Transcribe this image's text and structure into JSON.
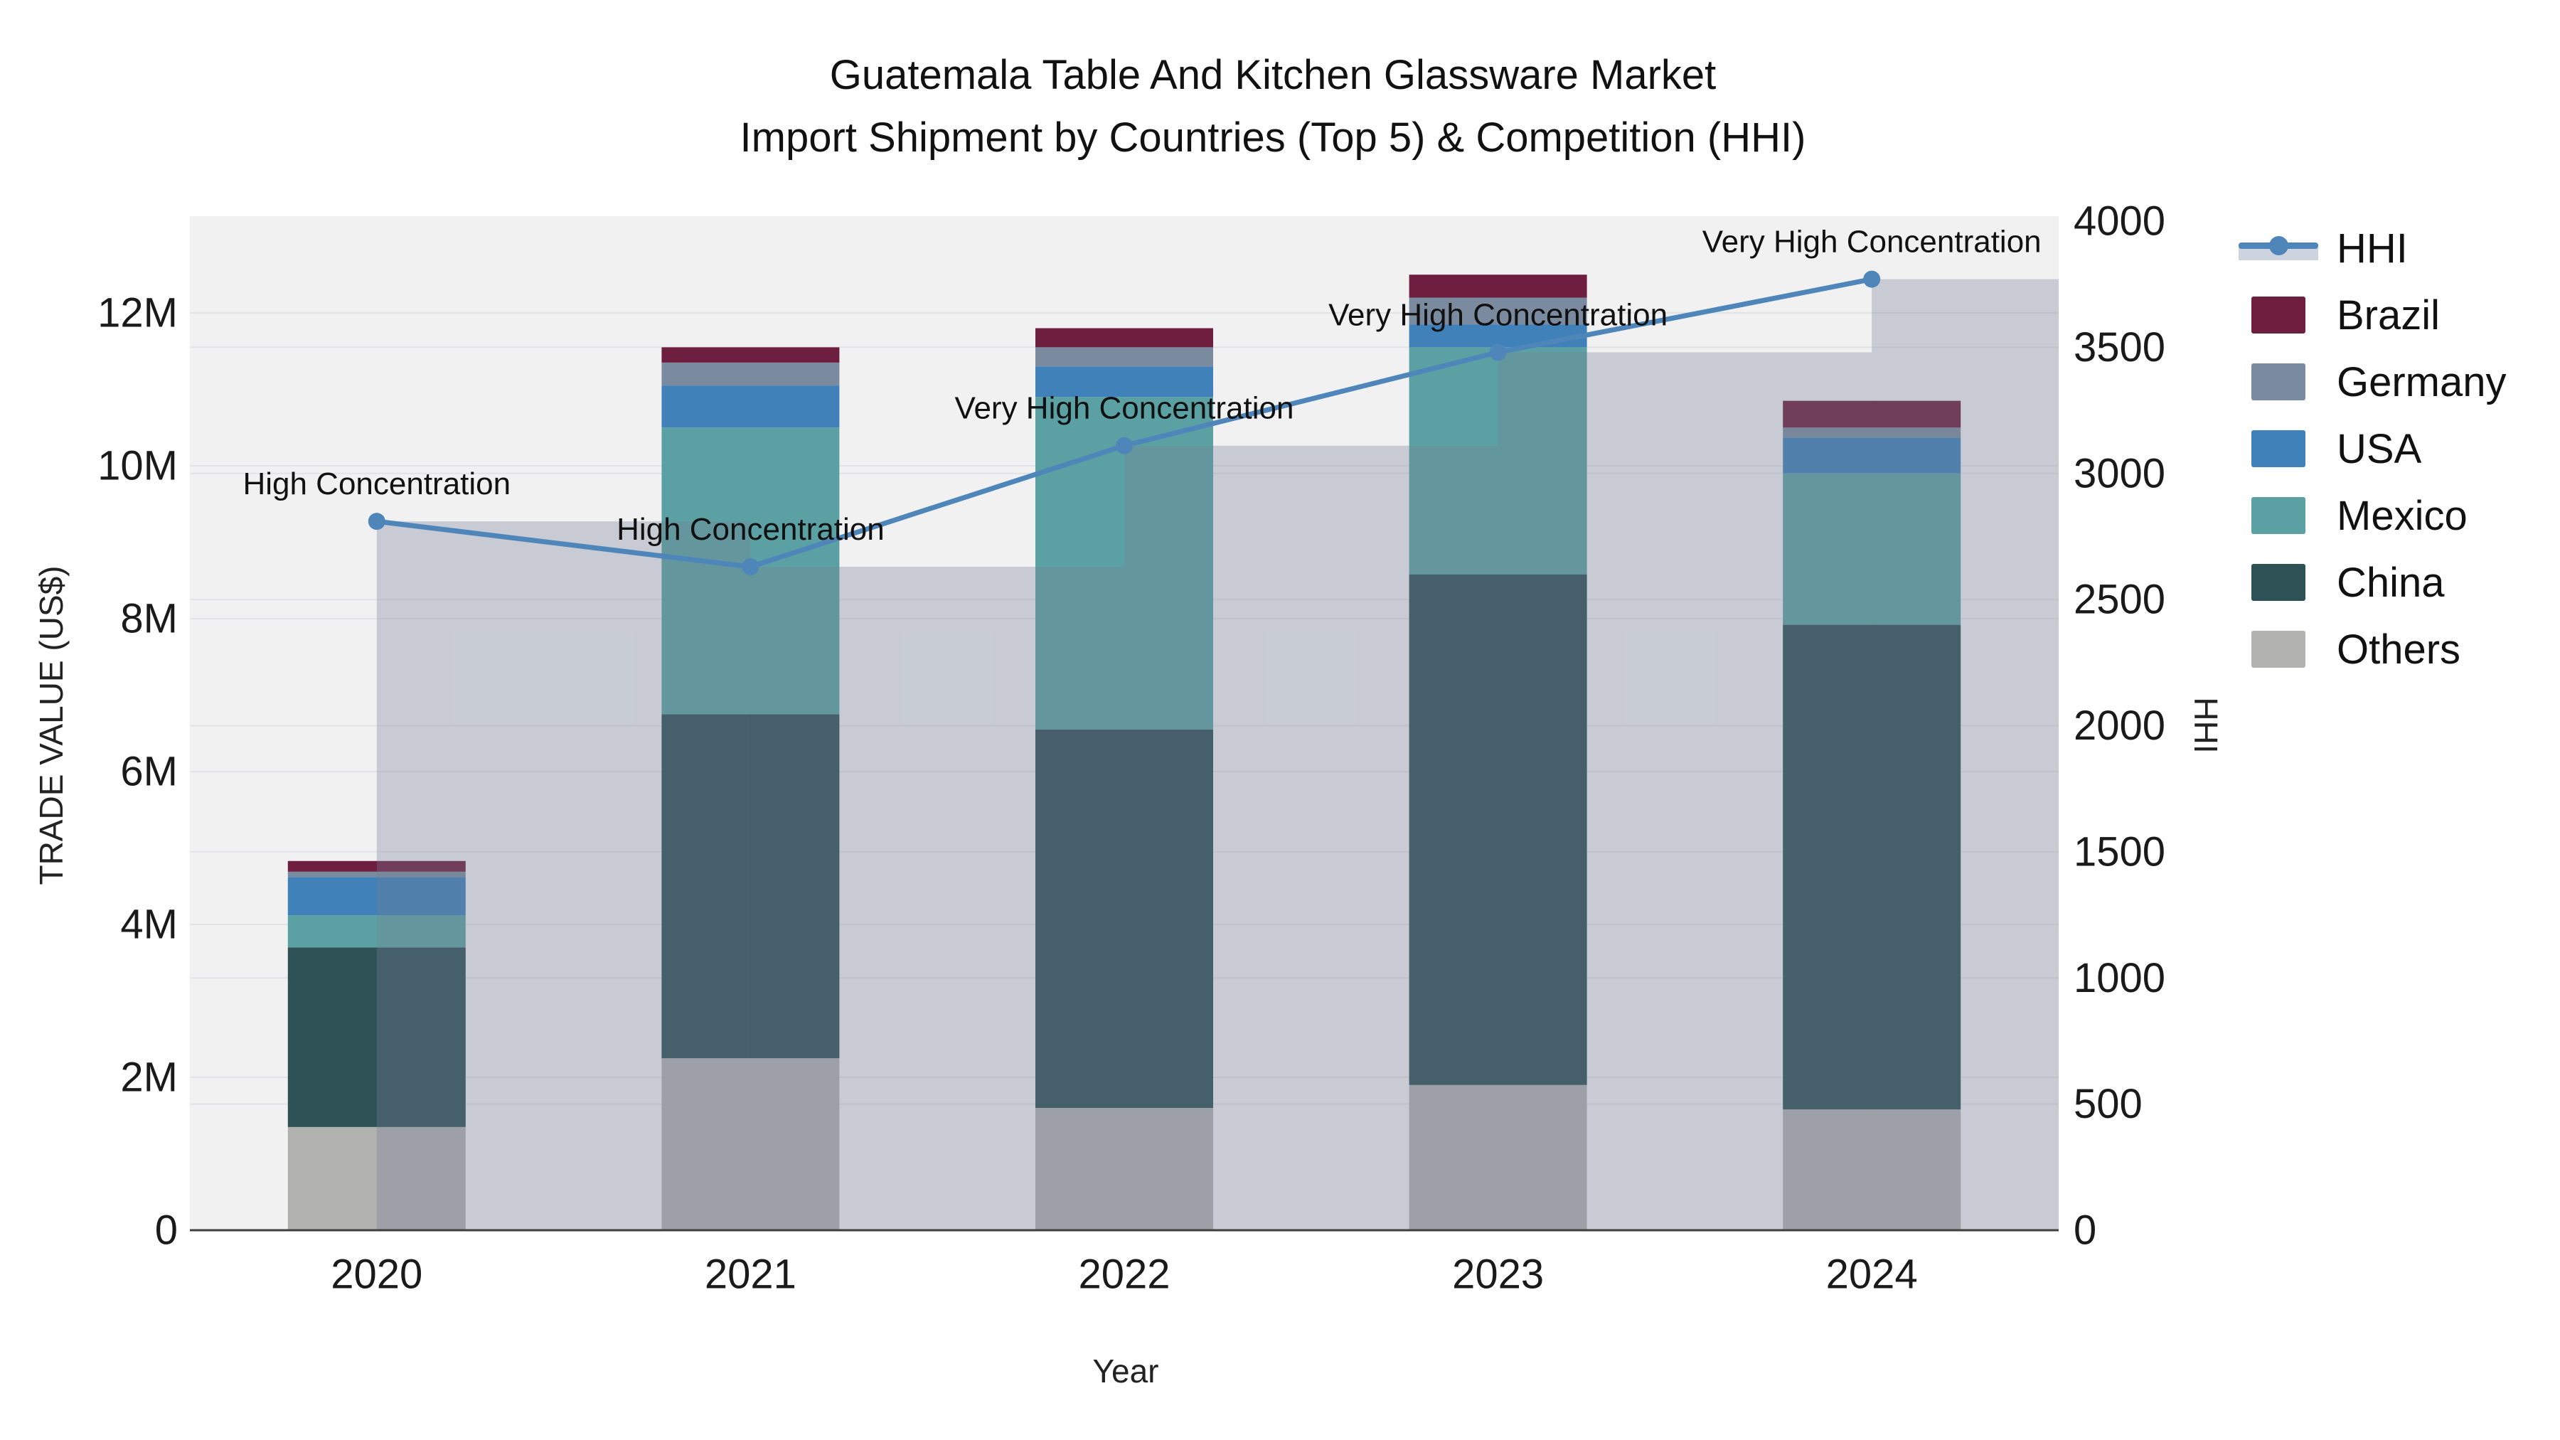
{
  "title": {
    "line1": "Guatemala Table And Kitchen Glassware Market",
    "line2": "Import Shipment by Countries (Top 5) & Competition (HHI)"
  },
  "axes": {
    "left_title": "TRADE VALUE (US$)",
    "right_title": "HHI",
    "x_title": "Year",
    "left_ticks": [
      {
        "label": "0",
        "value": 0
      },
      {
        "label": "2M",
        "value": 2
      },
      {
        "label": "4M",
        "value": 4
      },
      {
        "label": "6M",
        "value": 6
      },
      {
        "label": "8M",
        "value": 8
      },
      {
        "label": "10M",
        "value": 10
      },
      {
        "label": "12M",
        "value": 12
      }
    ],
    "right_ticks": [
      {
        "label": "0",
        "value": 0
      },
      {
        "label": "500",
        "value": 500
      },
      {
        "label": "1000",
        "value": 1000
      },
      {
        "label": "1500",
        "value": 1500
      },
      {
        "label": "2000",
        "value": 2000
      },
      {
        "label": "2500",
        "value": 2500
      },
      {
        "label": "3000",
        "value": 3000
      },
      {
        "label": "3500",
        "value": 3500
      },
      {
        "label": "4000",
        "value": 4000
      }
    ]
  },
  "legend": {
    "items": [
      {
        "label": "HHI",
        "type": "line",
        "color": "#4e86ba",
        "band_color": "#cdd4e0"
      },
      {
        "label": "Brazil",
        "type": "swatch",
        "color": "#6e1e3e"
      },
      {
        "label": "Germany",
        "type": "swatch",
        "color": "#7b8b9f"
      },
      {
        "label": "USA",
        "type": "swatch",
        "color": "#4081ba"
      },
      {
        "label": "Mexico",
        "type": "swatch",
        "color": "#5ba1a3"
      },
      {
        "label": "China",
        "type": "swatch",
        "color": "#2e5156"
      },
      {
        "label": "Others",
        "type": "swatch",
        "color": "#b1b1b0"
      }
    ]
  },
  "chart_data": {
    "type": "combo-stacked-bar-line",
    "categories": [
      "2020",
      "2021",
      "2022",
      "2023",
      "2024"
    ],
    "value_unit": "US$ millions",
    "stack_order_bottom_to_top": [
      "Others",
      "China",
      "Mexico",
      "USA",
      "Germany",
      "Brazil"
    ],
    "series": [
      {
        "name": "Others",
        "color": "#b1b1b0",
        "values": [
          1.35,
          2.25,
          1.6,
          1.9,
          1.58
        ]
      },
      {
        "name": "China",
        "color": "#2e5156",
        "values": [
          2.35,
          4.5,
          4.95,
          6.68,
          6.34
        ]
      },
      {
        "name": "Mexico",
        "color": "#5ba1a3",
        "values": [
          0.42,
          3.75,
          4.35,
          2.97,
          1.98
        ]
      },
      {
        "name": "USA",
        "color": "#4081ba",
        "values": [
          0.5,
          0.55,
          0.4,
          0.3,
          0.47
        ]
      },
      {
        "name": "Germany",
        "color": "#7b8b9f",
        "values": [
          0.07,
          0.3,
          0.25,
          0.35,
          0.13
        ]
      },
      {
        "name": "Brazil",
        "color": "#6e1e3e",
        "values": [
          0.14,
          0.2,
          0.25,
          0.3,
          0.35
        ]
      }
    ],
    "bar_totals": [
      4.83,
      11.55,
      11.8,
      12.5,
      10.85
    ],
    "line_series": {
      "name": "HHI",
      "color": "#4e86ba",
      "values": [
        2810,
        2630,
        3110,
        3480,
        3770
      ],
      "band_fill": "#758196",
      "band_opacity": 0.33
    },
    "annotations": [
      "High Concentration",
      "High Concentration",
      "Very High Concentration",
      "Very High Concentration",
      "Very High Concentration"
    ],
    "left_axis_max_m": 13.2,
    "right_axis_max": 4000,
    "grid": true,
    "legend_position": "right"
  },
  "style": {
    "plot_bg": "#f1f1f2",
    "grid_color": "#e2e3e7",
    "axis_line_color": "#3f3f3f",
    "text_color": "#111111",
    "tick_color": "#1a1a1a"
  }
}
